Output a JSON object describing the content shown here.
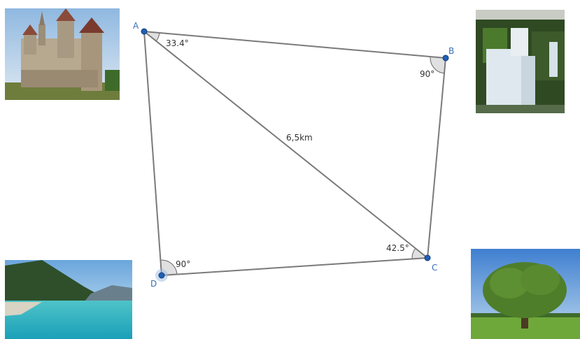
{
  "points": [
    {
      "label": "A"
    },
    {
      "label": "B"
    },
    {
      "label": "C"
    },
    {
      "label": "D"
    }
  ],
  "angles": [
    {
      "label": "33.4°"
    },
    {
      "label": "90°"
    },
    {
      "label": "42.5°"
    },
    {
      "label": "90°"
    }
  ],
  "segment_label": "6,5km"
}
